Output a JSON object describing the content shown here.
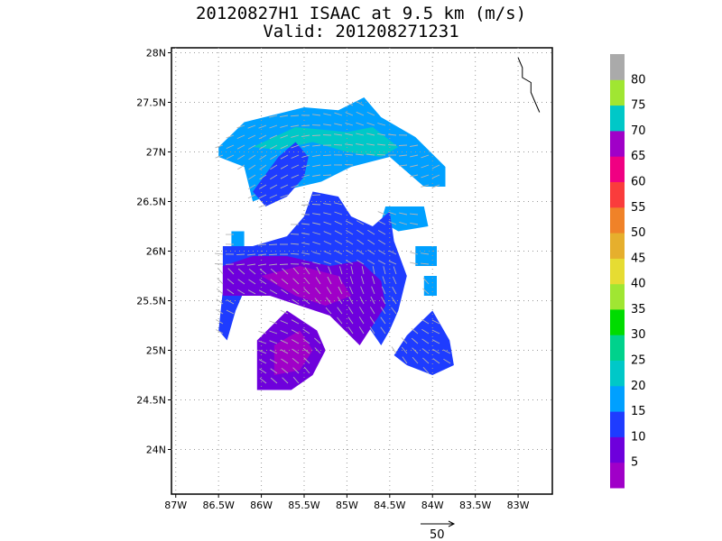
{
  "title": "20120827H1 ISAAC at 9.5 km (m/s)",
  "subtitle": "Valid: 201208271231",
  "map": {
    "lon_range": [
      -87.05,
      -82.6
    ],
    "lat_range": [
      23.55,
      28.05
    ],
    "lon_ticks": [
      {
        "v": -87,
        "label": "87W"
      },
      {
        "v": -86.5,
        "label": "86.5W"
      },
      {
        "v": -86,
        "label": "86W"
      },
      {
        "v": -85.5,
        "label": "85.5W"
      },
      {
        "v": -85,
        "label": "85W"
      },
      {
        "v": -84.5,
        "label": "84.5W"
      },
      {
        "v": -84,
        "label": "84W"
      },
      {
        "v": -83.5,
        "label": "83.5W"
      },
      {
        "v": -83,
        "label": "83W"
      }
    ],
    "lat_ticks": [
      {
        "v": 24,
        "label": "24N"
      },
      {
        "v": 24.5,
        "label": "24.5N"
      },
      {
        "v": 25,
        "label": "25N"
      },
      {
        "v": 25.5,
        "label": "25.5N"
      },
      {
        "v": 26,
        "label": "26N"
      },
      {
        "v": 26.5,
        "label": "26.5N"
      },
      {
        "v": 27,
        "label": "27N"
      },
      {
        "v": 27.5,
        "label": "27.5N"
      },
      {
        "v": 28,
        "label": "28N"
      }
    ],
    "grid": true
  },
  "colorbar": {
    "labels": [
      "5",
      "10",
      "15",
      "20",
      "25",
      "30",
      "35",
      "40",
      "45",
      "50",
      "55",
      "60",
      "65",
      "70",
      "75",
      "80"
    ],
    "colors": [
      "#a000c8",
      "#6e00dc",
      "#1e3cff",
      "#00a0ff",
      "#00c8c8",
      "#00d28c",
      "#00dc00",
      "#a0e632",
      "#e6dc32",
      "#e6af2d",
      "#f08228",
      "#fa3c3c",
      "#f00082",
      "#a000c8",
      "#00c8c8",
      "#a0e632",
      "#aaaaaa"
    ]
  },
  "regions": [
    {
      "color": "#00a0ff",
      "points": [
        [
          -86.5,
          27.05
        ],
        [
          -86.2,
          27.3
        ],
        [
          -85.5,
          27.45
        ],
        [
          -85.1,
          27.42
        ],
        [
          -84.8,
          27.55
        ],
        [
          -84.6,
          27.35
        ],
        [
          -84.2,
          27.15
        ],
        [
          -83.85,
          26.85
        ],
        [
          -83.85,
          26.65
        ],
        [
          -84.1,
          26.65
        ],
        [
          -84.5,
          26.95
        ],
        [
          -84.95,
          26.85
        ],
        [
          -85.3,
          26.7
        ],
        [
          -85.8,
          26.6
        ],
        [
          -86.1,
          26.5
        ],
        [
          -86.2,
          26.85
        ],
        [
          -86.5,
          26.95
        ]
      ]
    },
    {
      "color": "#00c8c8",
      "points": [
        [
          -86.1,
          27.05
        ],
        [
          -85.6,
          27.25
        ],
        [
          -85.0,
          27.2
        ],
        [
          -84.7,
          27.25
        ],
        [
          -84.4,
          27.05
        ],
        [
          -84.6,
          26.95
        ],
        [
          -85.0,
          27.0
        ],
        [
          -85.4,
          27.1
        ],
        [
          -85.8,
          27.02
        ]
      ]
    },
    {
      "color": "#00a0ff",
      "points": [
        [
          -84.55,
          26.45
        ],
        [
          -84.1,
          26.45
        ],
        [
          -84.05,
          26.25
        ],
        [
          -84.4,
          26.2
        ],
        [
          -84.6,
          26.3
        ]
      ]
    },
    {
      "color": "#00a0ff",
      "points": [
        [
          -84.2,
          26.05
        ],
        [
          -83.95,
          26.05
        ],
        [
          -83.95,
          25.85
        ],
        [
          -84.2,
          25.85
        ]
      ]
    },
    {
      "color": "#00a0ff",
      "points": [
        [
          -84.1,
          25.75
        ],
        [
          -83.95,
          25.75
        ],
        [
          -83.95,
          25.55
        ],
        [
          -84.1,
          25.55
        ]
      ]
    },
    {
      "color": "#00a0ff",
      "points": [
        [
          -86.35,
          26.2
        ],
        [
          -86.2,
          26.2
        ],
        [
          -86.2,
          26.05
        ],
        [
          -86.35,
          26.05
        ]
      ]
    },
    {
      "color": "#1e3cff",
      "points": [
        [
          -86.45,
          26.05
        ],
        [
          -86.1,
          26.05
        ],
        [
          -85.7,
          26.15
        ],
        [
          -85.5,
          26.35
        ],
        [
          -85.4,
          26.6
        ],
        [
          -85.1,
          26.55
        ],
        [
          -84.95,
          26.35
        ],
        [
          -84.7,
          26.25
        ],
        [
          -84.5,
          26.4
        ],
        [
          -84.45,
          26.1
        ],
        [
          -84.3,
          25.75
        ],
        [
          -84.4,
          25.4
        ],
        [
          -84.5,
          25.2
        ],
        [
          -84.6,
          25.05
        ],
        [
          -84.8,
          25.3
        ],
        [
          -85.0,
          25.45
        ],
        [
          -85.4,
          25.55
        ],
        [
          -85.9,
          25.65
        ],
        [
          -86.2,
          25.6
        ],
        [
          -86.3,
          25.4
        ],
        [
          -86.4,
          25.1
        ],
        [
          -86.5,
          25.2
        ],
        [
          -86.45,
          25.6
        ]
      ]
    },
    {
      "color": "#1e3cff",
      "points": [
        [
          -86.1,
          26.6
        ],
        [
          -85.8,
          26.95
        ],
        [
          -85.6,
          27.1
        ],
        [
          -85.45,
          26.95
        ],
        [
          -85.5,
          26.75
        ],
        [
          -85.7,
          26.55
        ],
        [
          -85.95,
          26.45
        ]
      ]
    },
    {
      "color": "#1e3cff",
      "points": [
        [
          -84.3,
          25.15
        ],
        [
          -84.0,
          25.4
        ],
        [
          -83.8,
          25.1
        ],
        [
          -83.75,
          24.85
        ],
        [
          -84.0,
          24.75
        ],
        [
          -84.3,
          24.85
        ],
        [
          -84.45,
          24.95
        ]
      ]
    },
    {
      "color": "#6e00dc",
      "points": [
        [
          -86.45,
          25.85
        ],
        [
          -86.1,
          25.95
        ],
        [
          -85.7,
          25.95
        ],
        [
          -85.2,
          25.85
        ],
        [
          -84.85,
          25.9
        ],
        [
          -84.6,
          25.7
        ],
        [
          -84.55,
          25.45
        ],
        [
          -84.7,
          25.25
        ],
        [
          -84.85,
          25.05
        ],
        [
          -85.2,
          25.35
        ],
        [
          -85.55,
          25.45
        ],
        [
          -85.9,
          25.55
        ],
        [
          -86.2,
          25.55
        ],
        [
          -86.45,
          25.55
        ]
      ]
    },
    {
      "color": "#a000c8",
      "points": [
        [
          -86.0,
          25.75
        ],
        [
          -85.55,
          25.85
        ],
        [
          -85.1,
          25.75
        ],
        [
          -84.95,
          25.55
        ],
        [
          -85.25,
          25.45
        ],
        [
          -85.6,
          25.55
        ]
      ]
    },
    {
      "color": "#6e00dc",
      "points": [
        [
          -85.7,
          25.4
        ],
        [
          -85.35,
          25.2
        ],
        [
          -85.25,
          25.0
        ],
        [
          -85.4,
          24.75
        ],
        [
          -85.65,
          24.6
        ],
        [
          -86.05,
          24.6
        ],
        [
          -86.05,
          25.1
        ]
      ]
    },
    {
      "color": "#a000c8",
      "points": [
        [
          -85.55,
          25.2
        ],
        [
          -85.4,
          25.0
        ],
        [
          -85.55,
          24.8
        ],
        [
          -85.85,
          24.75
        ],
        [
          -85.85,
          25.05
        ]
      ]
    }
  ],
  "coast": [
    [
      -83.0,
      27.95
    ],
    [
      -82.95,
      27.85
    ],
    [
      -82.95,
      27.75
    ],
    [
      -82.85,
      27.7
    ],
    [
      -82.85,
      27.6
    ],
    [
      -82.8,
      27.5
    ],
    [
      -82.75,
      27.4
    ]
  ],
  "vector_legend": {
    "label": "50"
  }
}
